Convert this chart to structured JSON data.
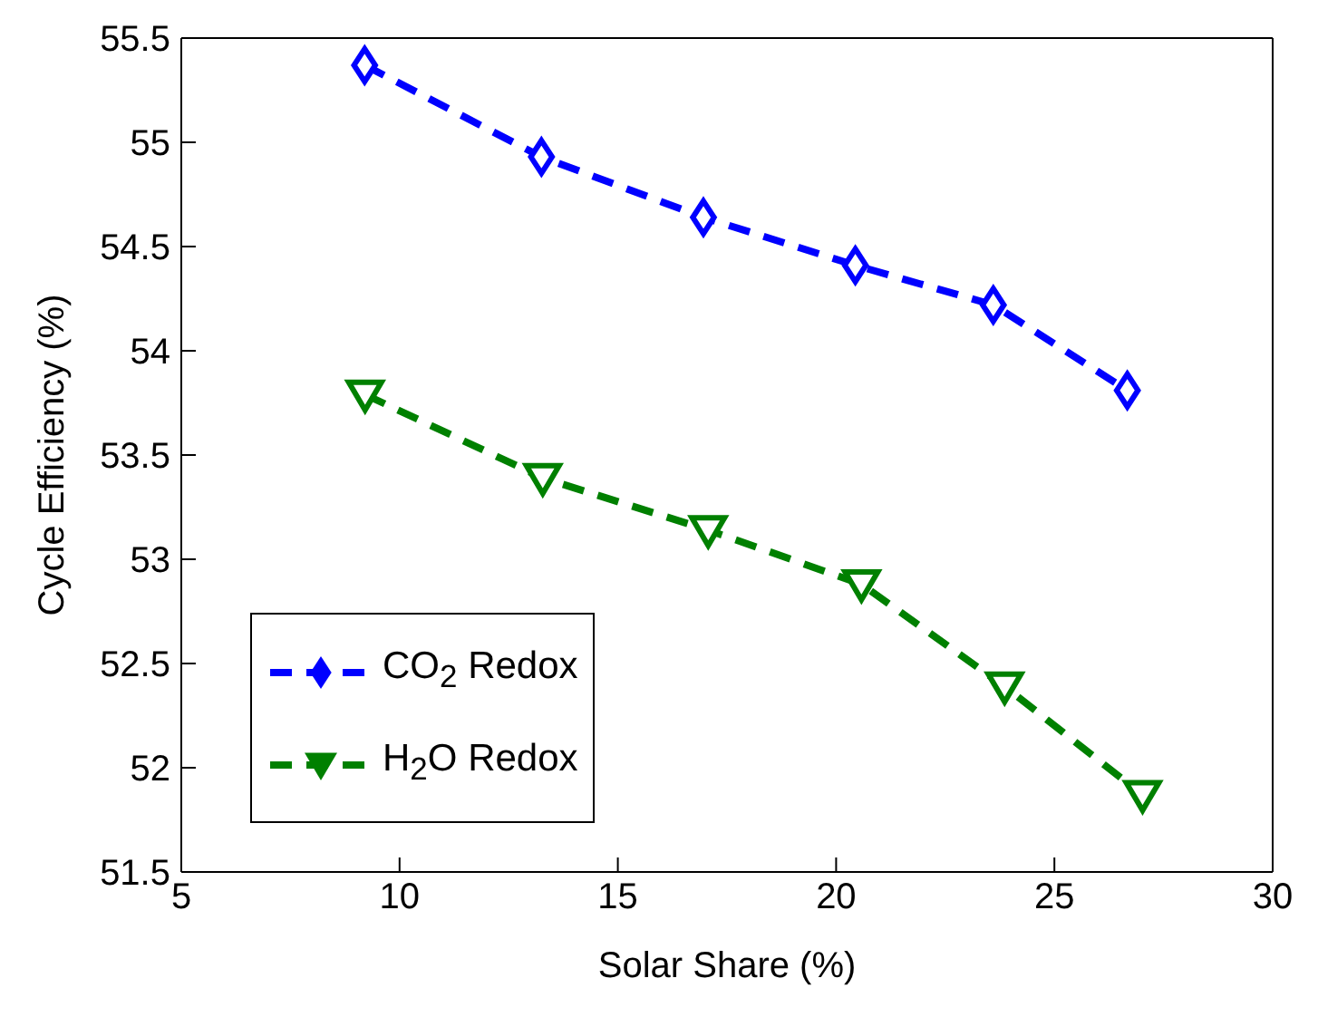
{
  "chart_data": {
    "type": "line",
    "xlabel": "Solar Share (%)",
    "ylabel": "Cycle Efficiency (%)",
    "x": [
      9.2,
      13.25,
      16.96,
      20.44,
      23.6,
      26.67
    ],
    "series": [
      {
        "name": "CO$_{2}$ Redox",
        "color": "#0000ff",
        "marker": "diamond",
        "values": [
          55.37,
          54.93,
          54.64,
          54.41,
          54.22,
          53.81
        ]
      },
      {
        "name": "H$_{2}$O Redox",
        "color": "#008000",
        "marker": "triangle",
        "x": [
          9.21,
          13.28,
          17.07,
          20.58,
          23.86,
          27.02
        ],
        "values": [
          53.79,
          53.39,
          53.14,
          52.88,
          52.39,
          51.87
        ]
      }
    ],
    "xlim": [
      5,
      30
    ],
    "xticks": [
      5,
      10,
      15,
      20,
      25,
      30
    ],
    "ylim": [
      51.5,
      55.5
    ],
    "yticks": [
      51.5,
      52,
      52.5,
      53,
      53.5,
      54,
      54.5,
      55,
      55.5
    ],
    "legend": "bottom left",
    "line_style": "dashed"
  }
}
